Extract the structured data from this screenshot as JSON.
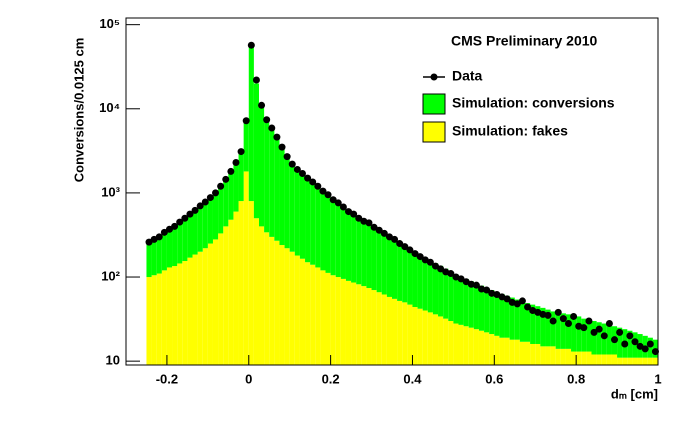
{
  "chart_data": {
    "type": "histogram",
    "annotation": "CMS Preliminary 2010",
    "x_label": "dₘ [cm]",
    "y_label": "Conversions/0.0125 cm",
    "log_y": true,
    "xlim": [
      -0.3,
      1
    ],
    "ylim": [
      9,
      120000
    ],
    "xticks": [
      -0.2,
      0,
      0.2,
      0.4,
      0.6,
      0.8,
      1
    ],
    "yticks": [
      10,
      {
        "value": 100,
        "label": "10²"
      },
      {
        "value": 1000,
        "label": "10³"
      },
      {
        "value": 10000,
        "label": "10⁴"
      },
      {
        "value": 100000,
        "label": "10⁵"
      }
    ],
    "bins": [
      -0.25,
      -0.2375,
      -0.225,
      -0.2125,
      -0.2,
      -0.1875,
      -0.175,
      -0.1625,
      -0.15,
      -0.1375,
      -0.125,
      -0.1125,
      -0.1,
      -0.0875,
      -0.075,
      -0.0625,
      -0.05,
      -0.0375,
      -0.025,
      -0.0125,
      0,
      0.0125,
      0.025,
      0.0375,
      0.05,
      0.0625,
      0.075,
      0.0875,
      0.1,
      0.1125,
      0.125,
      0.1375,
      0.15,
      0.1625,
      0.175,
      0.1875,
      0.2,
      0.2125,
      0.225,
      0.2375,
      0.25,
      0.2625,
      0.275,
      0.2875,
      0.3,
      0.3125,
      0.325,
      0.3375,
      0.35,
      0.3625,
      0.375,
      0.3875,
      0.4,
      0.4125,
      0.425,
      0.4375,
      0.45,
      0.4625,
      0.475,
      0.4875,
      0.5,
      0.5125,
      0.525,
      0.5375,
      0.55,
      0.5625,
      0.575,
      0.5875,
      0.6,
      0.6125,
      0.625,
      0.6375,
      0.65,
      0.6625,
      0.675,
      0.6875,
      0.7,
      0.7125,
      0.725,
      0.7375,
      0.75,
      0.7625,
      0.775,
      0.7875,
      0.8,
      0.8125,
      0.825,
      0.8375,
      0.85,
      0.8625,
      0.875,
      0.8875,
      0.9,
      0.9125,
      0.925,
      0.9375,
      0.95,
      0.9625,
      0.975,
      0.9875,
      1
    ],
    "series": [
      {
        "name": "Simulation: fakes",
        "color": "#ffff00",
        "stacked": true,
        "values": [
          100,
          105,
          110,
          120,
          130,
          135,
          145,
          155,
          170,
          185,
          200,
          220,
          250,
          280,
          330,
          400,
          480,
          600,
          800,
          1800,
          800,
          500,
          400,
          340,
          300,
          270,
          240,
          220,
          200,
          180,
          165,
          150,
          140,
          130,
          120,
          112,
          105,
          100,
          95,
          90,
          86,
          82,
          78,
          74,
          70,
          66,
          62,
          58,
          55,
          52,
          50,
          47,
          44,
          42,
          40,
          38,
          36,
          34,
          32,
          30,
          28,
          27,
          26,
          25,
          24,
          23,
          22,
          21,
          20,
          19,
          19,
          18,
          18,
          17,
          17,
          16,
          16,
          15,
          15,
          15,
          14,
          14,
          14,
          13,
          13,
          13,
          13,
          12,
          12,
          12,
          12,
          12,
          11,
          11,
          11,
          11,
          11,
          11,
          11,
          11
        ]
      },
      {
        "name": "Simulation: conversions",
        "color": "#00ff00",
        "stacked": true,
        "values": [
          150,
          165,
          190,
          210,
          230,
          265,
          295,
          335,
          370,
          415,
          480,
          540,
          610,
          700,
          820,
          1000,
          1220,
          1600,
          2200,
          5200,
          54200,
          19500,
          10600,
          7160,
          5700,
          4230,
          3260,
          2380,
          1900,
          1670,
          1485,
          1330,
          1190,
          1050,
          930,
          818,
          715,
          640,
          575,
          520,
          474,
          428,
          392,
          366,
          330,
          304,
          278,
          252,
          230,
          208,
          190,
          173,
          156,
          143,
          130,
          120,
          110,
          102,
          94,
          87,
          80,
          74,
          69,
          64,
          60,
          56,
          52,
          49,
          46,
          44,
          41,
          39,
          36,
          34,
          32,
          31,
          29,
          28,
          26,
          24,
          24,
          23,
          22,
          22,
          21,
          19,
          18,
          18,
          17,
          16,
          15,
          14,
          14,
          13,
          12,
          11,
          10,
          9,
          8,
          7
        ]
      },
      {
        "name": "Data",
        "color": "#000000",
        "marker": "circle",
        "values": [
          260,
          280,
          300,
          340,
          370,
          400,
          450,
          500,
          560,
          620,
          700,
          780,
          880,
          1000,
          1200,
          1450,
          1800,
          2300,
          3100,
          7200,
          57000,
          22000,
          11000,
          7400,
          5900,
          4600,
          3500,
          2700,
          2200,
          1900,
          1700,
          1500,
          1350,
          1200,
          1050,
          950,
          830,
          760,
          680,
          600,
          560,
          500,
          460,
          440,
          390,
          360,
          330,
          300,
          280,
          250,
          230,
          210,
          190,
          175,
          160,
          150,
          135,
          125,
          115,
          110,
          100,
          95,
          88,
          82,
          80,
          72,
          70,
          64,
          62,
          58,
          55,
          50,
          48,
          52,
          44,
          40,
          38,
          36,
          35,
          30,
          38,
          32,
          28,
          34,
          26,
          25,
          30,
          22,
          24,
          20,
          28,
          18,
          22,
          16,
          20,
          17,
          15,
          14,
          16,
          13
        ]
      }
    ]
  }
}
